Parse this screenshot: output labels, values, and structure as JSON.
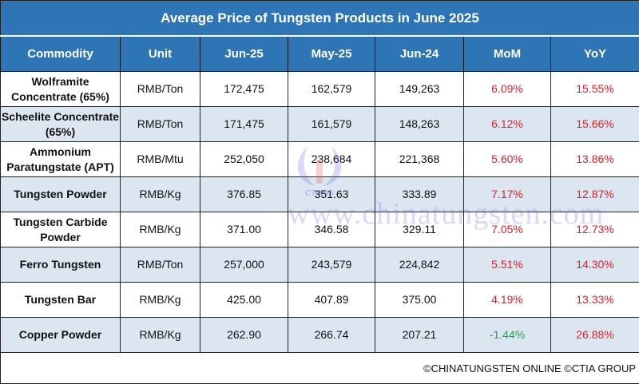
{
  "title": "Average Price of Tungsten Products in June 2025",
  "headers": [
    "Commodity",
    "Unit",
    "Jun-25",
    "May-25",
    "Jun-24",
    "MoM",
    "YoY"
  ],
  "rows": [
    {
      "commodity": "Wolframite Concentrate (65%)",
      "unit": "RMB/Ton",
      "jun25": "172,475",
      "may25": "162,579",
      "jun24": "149,263",
      "mom": "6.09%",
      "yoy": "15.55%"
    },
    {
      "commodity": "Scheelite Concentrate (65%)",
      "unit": "RMB/Ton",
      "jun25": "171,475",
      "may25": "161,579",
      "jun24": "148,263",
      "mom": "6.12%",
      "yoy": "15.66%"
    },
    {
      "commodity": "Ammonium Paratungstate (APT)",
      "unit": "RMB/Mtu",
      "jun25": "252,050",
      "may25": "238,684",
      "jun24": "221,368",
      "mom": "5.60%",
      "yoy": "13.86%"
    },
    {
      "commodity": "Tungsten Powder",
      "unit": "RMB/Kg",
      "jun25": "376.85",
      "may25": "351.63",
      "jun24": "333.89",
      "mom": "7.17%",
      "yoy": "12.87%"
    },
    {
      "commodity": "Tungsten Carbide Powder",
      "unit": "RMB/Kg",
      "jun25": "371.00",
      "may25": "346.58",
      "jun24": "329.11",
      "mom": "7.05%",
      "yoy": "12.73%"
    },
    {
      "commodity": "Ferro Tungsten",
      "unit": "RMB/Ton",
      "jun25": "257,000",
      "may25": "243,579",
      "jun24": "224,842",
      "mom": "5.51%",
      "yoy": "14.30%"
    },
    {
      "commodity": "Tungsten Bar",
      "unit": "RMB/Kg",
      "jun25": "425.00",
      "may25": "407.89",
      "jun24": "375.00",
      "mom": "4.19%",
      "yoy": "13.33%"
    },
    {
      "commodity": "Copper Powder",
      "unit": "RMB/Kg",
      "jun25": "262.90",
      "may25": "266.74",
      "jun24": "207.21",
      "mom": "-1.44%",
      "yoy": "26.88%"
    }
  ],
  "footer": "©CHINATUNGSTEN ONLINE ©CTIA GROUP",
  "watermark": "www.chinatungsten.com",
  "logo_text": "CTOMS",
  "colors": {
    "header": "#2e75b6",
    "alt_row": "#dce6f1",
    "positive": "#e0202a",
    "negative": "#1fa84f"
  }
}
